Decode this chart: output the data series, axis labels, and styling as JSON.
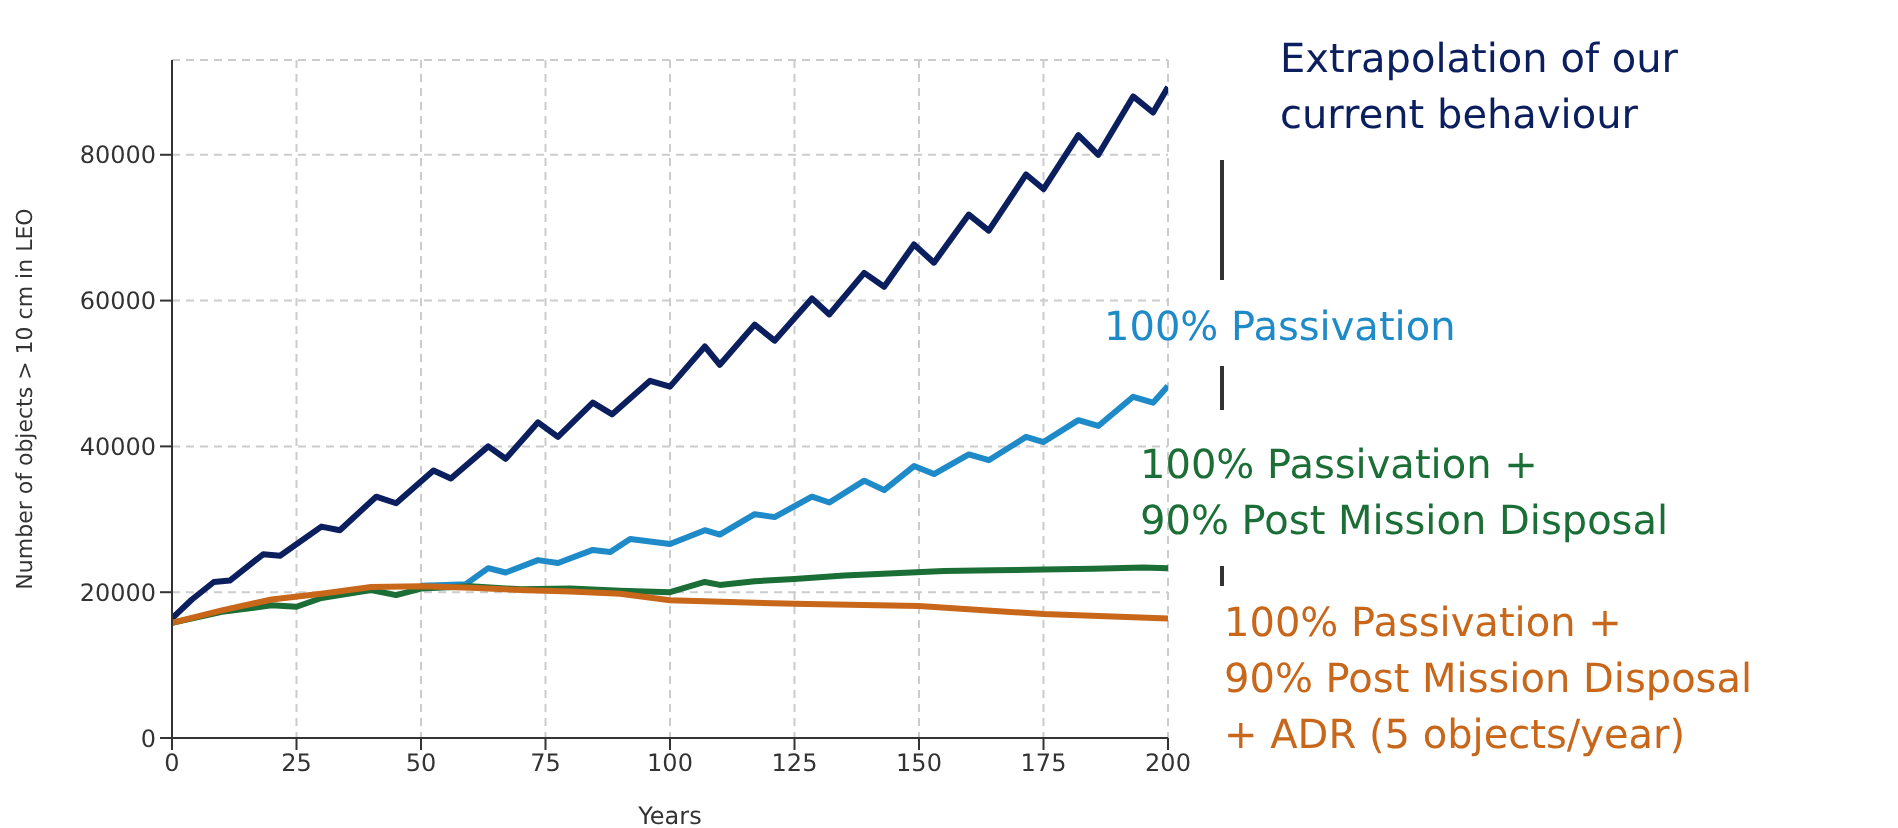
{
  "chart_data": {
    "type": "line",
    "xlabel": "Years",
    "ylabel": "Number of objects > 10 cm in LEO",
    "xlim": [
      0,
      200
    ],
    "xticks": [
      0,
      25,
      50,
      75,
      100,
      125,
      150,
      175,
      200
    ],
    "ylim": [
      0,
      93000
    ],
    "yticks": [
      0,
      20000,
      40000,
      60000,
      80000
    ],
    "grid": true,
    "legend": "right",
    "marker": "none",
    "line_style": "solid",
    "series": [
      {
        "name": "Extrapolation of our\ncurrent behaviour",
        "color": "#0b1f5e",
        "x": [
          0,
          4,
          8.4,
          11.6,
          18.3,
          21.7,
          30,
          33.7,
          41,
          45,
          52.5,
          56,
          63.5,
          67,
          73.5,
          77.5,
          84.5,
          88.4,
          96,
          100,
          107,
          110,
          117,
          121,
          128.5,
          132,
          139,
          143,
          149,
          153,
          160,
          164,
          171.5,
          175,
          182,
          186,
          193,
          197,
          200
        ],
        "values": [
          16400,
          19000,
          21400,
          21600,
          25200,
          25000,
          29000,
          28500,
          33100,
          32200,
          36700,
          35600,
          40000,
          38300,
          43300,
          41300,
          46000,
          44400,
          49000,
          48200,
          53700,
          51200,
          56700,
          54500,
          60300,
          58100,
          63800,
          61900,
          67700,
          65200,
          71800,
          69600,
          77300,
          75300,
          82700,
          80000,
          88000,
          85800,
          89300
        ]
      },
      {
        "name": "100% Passivation",
        "color": "#1f8ac8",
        "x": [
          50,
          55,
          59,
          63.5,
          67,
          73.5,
          77.5,
          84.5,
          88,
          92,
          100,
          107,
          110,
          117,
          121,
          128.5,
          132,
          139,
          143,
          149,
          153,
          160,
          164,
          171.5,
          175,
          182,
          186,
          193,
          197,
          200
        ],
        "values": [
          20900,
          21000,
          21100,
          23300,
          22700,
          24400,
          24000,
          25800,
          25500,
          27300,
          26600,
          28500,
          27900,
          30700,
          30300,
          33100,
          32300,
          35300,
          34000,
          37300,
          36200,
          38900,
          38100,
          41300,
          40600,
          43600,
          42800,
          46800,
          46000,
          48300
        ]
      },
      {
        "name": "100% Passivation +\n90% Post Mission Disposal",
        "color": "#1b6e35",
        "x": [
          0,
          10,
          20,
          25,
          30,
          40,
          45,
          50,
          60,
          70,
          80,
          90,
          100,
          107,
          110,
          117,
          125,
          135,
          145,
          155,
          165,
          175,
          185,
          195,
          200
        ],
        "values": [
          15800,
          17300,
          18200,
          18000,
          19200,
          20300,
          19600,
          20500,
          20800,
          20400,
          20500,
          20200,
          20000,
          21400,
          21000,
          21500,
          21800,
          22300,
          22600,
          22900,
          23000,
          23100,
          23200,
          23400,
          23300
        ]
      },
      {
        "name": "100% Passivation +\n90% Post Mission Disposal\n+ ADR (5 objects/year)",
        "color": "#c8661a",
        "x": [
          0,
          10,
          20,
          30,
          40,
          50,
          60,
          70,
          80,
          90,
          100,
          125,
          150,
          175,
          200
        ],
        "values": [
          15800,
          17500,
          19000,
          19800,
          20700,
          20800,
          20600,
          20300,
          20100,
          19800,
          18900,
          18400,
          18100,
          17000,
          16400
        ]
      }
    ]
  }
}
